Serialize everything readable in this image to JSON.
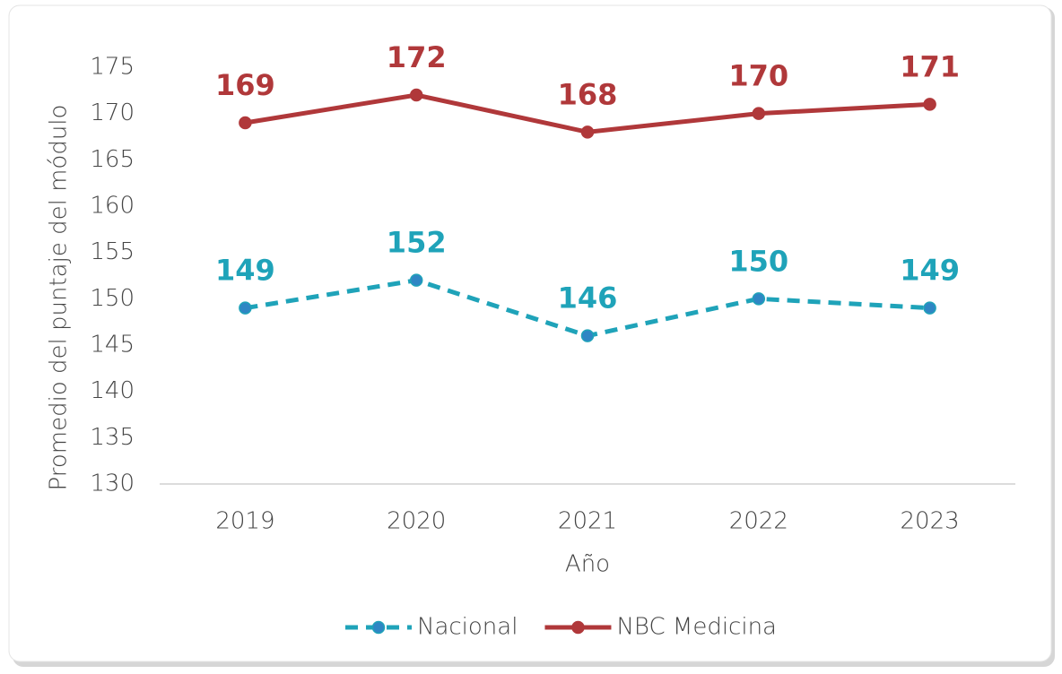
{
  "chart_data": {
    "type": "line",
    "y_label": "Promedio del puntaje del módulo",
    "x_label": "Año",
    "categories": [
      "2019",
      "2020",
      "2021",
      "2022",
      "2023"
    ],
    "series": [
      {
        "name": "Nacional",
        "color": "#1fa3b9",
        "marker_color": "#2f86c4",
        "line_style": "dashed",
        "values": [
          149,
          152,
          146,
          150,
          149
        ]
      },
      {
        "name": "NBC Medicina",
        "color": "#b0383a",
        "marker_color": "#b0383a",
        "line_style": "solid",
        "values": [
          169,
          172,
          168,
          170,
          171
        ]
      }
    ],
    "ylim": [
      130,
      175
    ],
    "yticks": [
      130,
      135,
      140,
      145,
      150,
      155,
      160,
      165,
      170,
      175
    ],
    "grid": false,
    "data_labels": true,
    "legend": "bottom"
  }
}
